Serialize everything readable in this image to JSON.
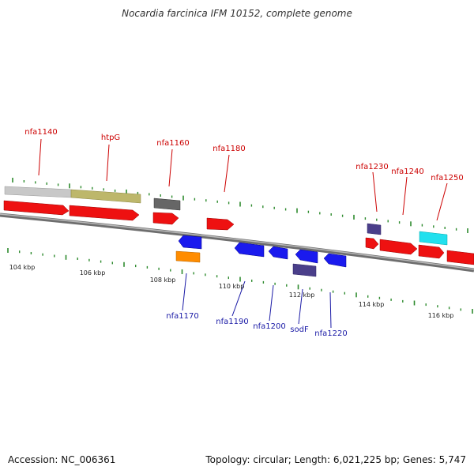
{
  "title": "Nocardia farcinica IFM 10152, complete genome",
  "footer": {
    "accession": "Accession: NC_006361",
    "topology": "Topology: circular; Length: 6,021,225 bp; Genes: 5,747"
  },
  "colors": {
    "backbone": "#8a8a8a",
    "forward_tick": "#2e8b2e",
    "label_forward": "#cc0000",
    "label_reverse": "#1a1aa6",
    "red": "#ee1111",
    "blue": "#1a1aee",
    "grey": "#c8c8c8",
    "khaki": "#bdb76b",
    "darkgrey": "#666666",
    "slate": "#4a3f8a",
    "cyan": "#22e0ee",
    "orange": "#ff8c00"
  },
  "kbp_ticks": [
    "104 kbp",
    "106 kbp",
    "108 kbp",
    "110 kbp",
    "112 kbp",
    "114 kbp",
    "116 kbp"
  ],
  "genes_top": [
    "nfa1140",
    "htpG",
    "nfa1160",
    "nfa1180",
    "nfa1230",
    "nfa1240",
    "nfa1250"
  ],
  "genes_bottom": [
    "nfa1170",
    "nfa1190",
    "nfa1200",
    "sodF",
    "nfa1220"
  ]
}
